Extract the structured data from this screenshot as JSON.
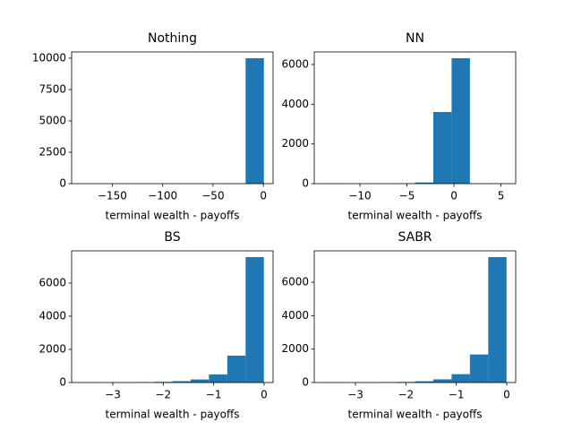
{
  "chart_data": [
    {
      "type": "histogram",
      "title": "Nothing",
      "xlabel": "terminal wealth - payoffs",
      "color": "#1f77b4",
      "bins": [
        -181.2,
        -163.03,
        -144.86,
        -126.69,
        -108.52,
        -90.35,
        -72.18,
        -54.01,
        -35.84,
        -17.67,
        0.5
      ],
      "values": [
        1,
        0,
        0,
        0,
        0,
        0,
        0,
        0,
        2,
        9997
      ],
      "xlim": [
        -190.3,
        9.6
      ],
      "ylim": [
        0,
        10497
      ],
      "xticks": [
        {
          "value": -150,
          "label": "−150"
        },
        {
          "value": -100,
          "label": "−100"
        },
        {
          "value": -50,
          "label": "−50"
        },
        0
      ],
      "yticks": [
        0,
        2500,
        5000,
        7500,
        10000
      ]
    },
    {
      "type": "histogram",
      "title": "NN",
      "xlabel": "terminal wealth - payoffs",
      "color": "#1f77b4",
      "bins": [
        -13.9,
        -11.95,
        -10.0,
        -8.05,
        -6.1,
        -4.15,
        -2.2,
        -0.25,
        1.7,
        3.65,
        5.6
      ],
      "values": [
        1,
        0,
        0,
        0,
        1,
        60,
        3609,
        6315,
        10,
        4
      ],
      "xlim": [
        -14.86,
        6.57
      ],
      "ylim": [
        0,
        6631
      ],
      "xticks": [
        {
          "value": -10,
          "label": "−10"
        },
        {
          "value": -5,
          "label": "−5"
        },
        0,
        5
      ],
      "yticks": [
        0,
        2000,
        4000,
        6000
      ]
    },
    {
      "type": "histogram",
      "title": "BS",
      "xlabel": "terminal wealth - payoffs",
      "color": "#1f77b4",
      "bins": [
        -3.636,
        -3.273,
        -2.91,
        -2.546,
        -2.183,
        -1.82,
        -1.457,
        -1.094,
        -0.73,
        -0.367,
        -0.004
      ],
      "values": [
        1,
        0,
        4,
        15,
        40,
        80,
        184,
        486,
        1622,
        7568
      ],
      "xlim": [
        -3.817,
        0.178
      ],
      "ylim": [
        0,
        7946
      ],
      "xticks": [
        {
          "value": -3,
          "label": "−3"
        },
        {
          "value": -2,
          "label": "−2"
        },
        {
          "value": -1,
          "label": "−1"
        },
        0
      ],
      "yticks": [
        0,
        2000,
        4000,
        6000
      ]
    },
    {
      "type": "histogram",
      "title": "SABR",
      "xlabel": "terminal wealth - payoffs",
      "color": "#1f77b4",
      "bins": [
        -3.636,
        -3.273,
        -2.91,
        -2.546,
        -2.183,
        -1.82,
        -1.457,
        -1.094,
        -0.73,
        -0.367,
        -0.004
      ],
      "values": [
        1,
        0,
        3,
        12,
        35,
        75,
        190,
        500,
        1680,
        7504
      ],
      "xlim": [
        -3.817,
        0.178
      ],
      "ylim": [
        0,
        7879
      ],
      "xticks": [
        {
          "value": -3,
          "label": "−3"
        },
        {
          "value": -2,
          "label": "−2"
        },
        {
          "value": -1,
          "label": "−1"
        },
        0
      ],
      "yticks": [
        0,
        2000,
        4000,
        6000
      ]
    }
  ]
}
